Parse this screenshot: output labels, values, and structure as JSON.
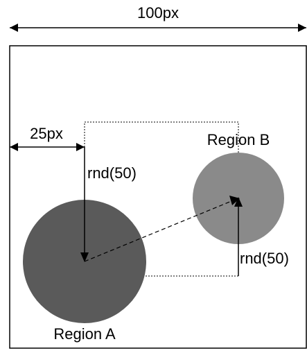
{
  "labels": {
    "width_label": "100px",
    "offset_label": "25px",
    "region_a": "Region A",
    "region_b": "Region B",
    "rnd_vertical_left": "rnd(50)",
    "rnd_vertical_right": "rnd(50)"
  },
  "colors": {
    "region_a_fill": "#5a5a5a",
    "region_b_fill": "#8a8a8a",
    "stroke": "#000000",
    "background": "#ffffff"
  }
}
